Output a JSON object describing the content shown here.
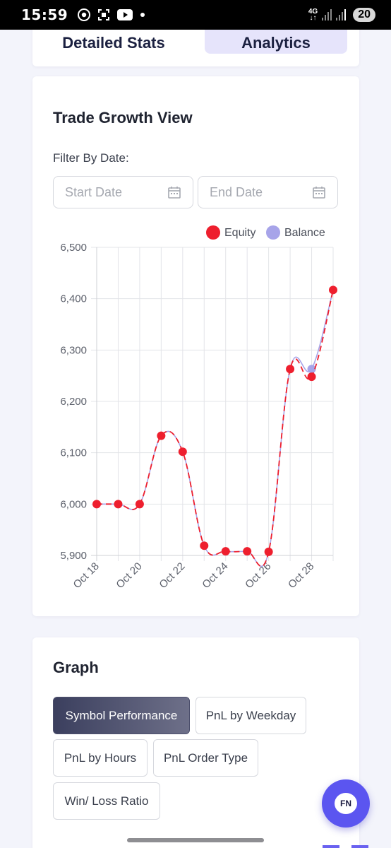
{
  "status_bar": {
    "time": "15:59",
    "network": "4G",
    "battery": "20"
  },
  "tabs": [
    {
      "label": "Detailed Stats",
      "active": false
    },
    {
      "label": "Analytics",
      "active": true
    }
  ],
  "trade_growth": {
    "title": "Trade Growth View",
    "filter_label": "Filter By Date:",
    "start_placeholder": "Start Date",
    "end_placeholder": "End Date"
  },
  "chart_data": {
    "type": "line",
    "x": [
      "Oct 18",
      "Oct 19",
      "Oct 20",
      "Oct 21",
      "Oct 22",
      "Oct 23",
      "Oct 24",
      "Oct 25",
      "Oct 26",
      "Oct 27",
      "Oct 28",
      "Oct 29"
    ],
    "x_tick_labels": [
      "Oct 18",
      "Oct 20",
      "Oct 22",
      "Oct 24",
      "Oct 26",
      "Oct 28"
    ],
    "y_tick_labels": [
      "6,500",
      "6,400",
      "6,300",
      "6,200",
      "6,100",
      "6,000",
      "5,900"
    ],
    "ylim": [
      5900,
      6500
    ],
    "grid": true,
    "legend": "top-right",
    "series": [
      {
        "name": "Equity",
        "color": "#ee1f2e",
        "values": [
          6000,
          6000,
          6000,
          6133,
          6102,
          5919,
          5908,
          5908,
          5907,
          6263,
          6248,
          6417
        ]
      },
      {
        "name": "Balance",
        "color": "#a7a4e9",
        "values": [
          6000,
          6000,
          6000,
          6133,
          6102,
          5919,
          5908,
          5908,
          5907,
          6263,
          6263,
          6417
        ]
      }
    ]
  },
  "graph": {
    "title": "Graph",
    "buttons": [
      {
        "label": "Symbol Performance",
        "active": true
      },
      {
        "label": "PnL by Weekday",
        "active": false
      },
      {
        "label": "PnL by Hours",
        "active": false
      },
      {
        "label": "PnL Order Type",
        "active": false
      },
      {
        "label": "Win/ Loss Ratio",
        "active": false
      }
    ]
  },
  "fab": {
    "label": "FN"
  }
}
